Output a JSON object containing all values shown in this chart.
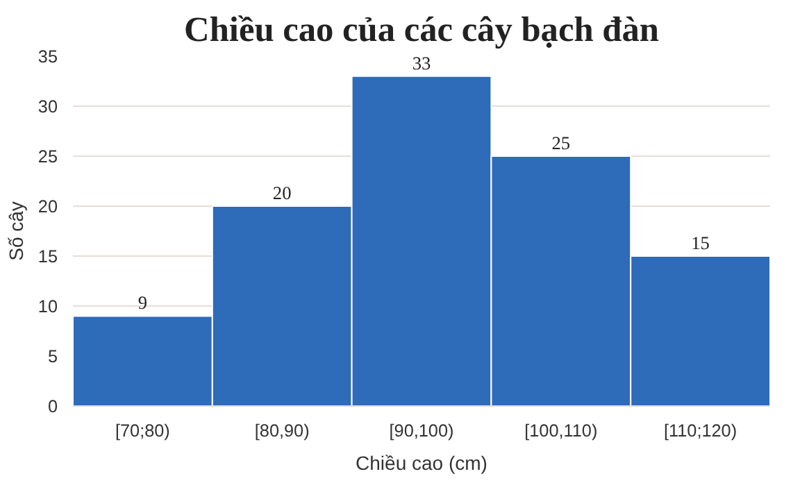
{
  "chart_data": {
    "type": "bar",
    "title": "Chiều cao của các cây bạch đàn",
    "xlabel": "Chiều cao (cm)",
    "ylabel": "Số cây",
    "categories": [
      "[70;80)",
      "[80,90)",
      "[90,100)",
      "[100,110)",
      "[110;120)"
    ],
    "values": [
      9,
      20,
      33,
      25,
      15
    ],
    "color": "#2e6bb8",
    "ylim": [
      0,
      35
    ],
    "yticks": [
      0,
      5,
      10,
      15,
      20,
      25,
      30,
      35
    ],
    "grid": "y",
    "data_labels": true
  }
}
